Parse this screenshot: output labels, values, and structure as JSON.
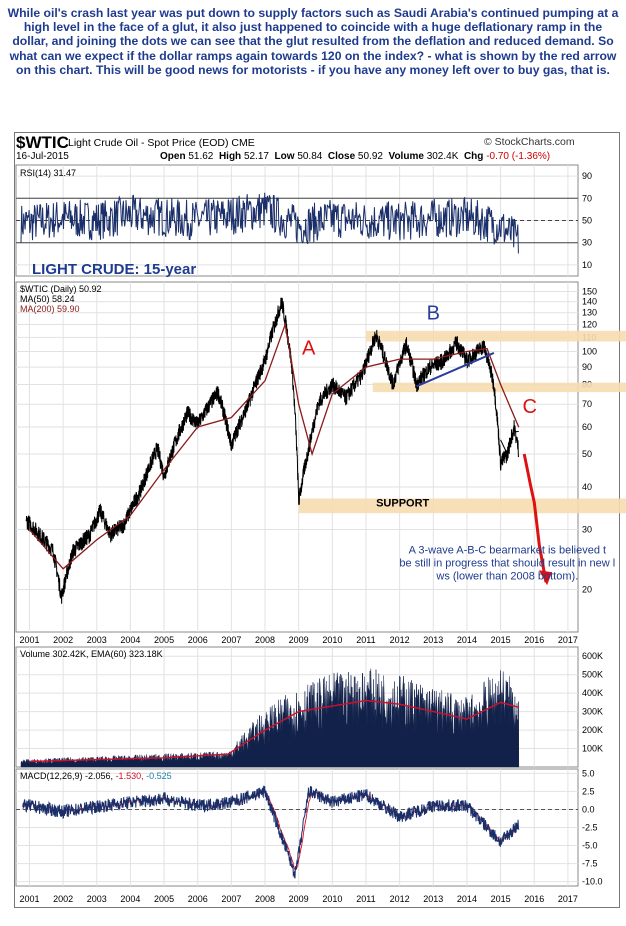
{
  "commentary": "While oil's crash last year was put down to supply factors such as Saudi Arabia's continued pumping at a high level in the face of a glut, it also just happened to coincide with a huge deflationary ramp in the dollar, and joining the dots we can see that the glut resulted from the deflation and reduced demand. So what can we expect if the dollar ramps again towards 120 on the index? - what is shown by the red arrow on this chart. This will be good news for motorists - if you have any money left over to buy gas, that is.",
  "header": {
    "symbol": "$WTIC",
    "name": "Light Crude Oil - Spot Price (EOD)",
    "exchange": "CME",
    "watermark": "© StockCharts.com",
    "date": "16-Jul-2015",
    "open_label": "Open",
    "open": "51.62",
    "high_label": "High",
    "high": "52.17",
    "low_label": "Low",
    "low": "50.84",
    "close_label": "Close",
    "close": "50.92",
    "volume_label": "Volume",
    "volume": "302.4K",
    "chg_label": "Chg",
    "chg": "-0.70 (-1.36%)"
  },
  "colors": {
    "price": "#000000",
    "ma200": "#8b1a1a",
    "indicator": "#1a2f6a",
    "annotation_red": "#dd1111",
    "annotation_blue": "#2a3d9c",
    "band": "#f6dcb0"
  },
  "chart_data": [
    {
      "type": "line",
      "panel": "RSI",
      "legend": "RSI(14) 31.47",
      "y_ticks": [
        10,
        30,
        50,
        70,
        90
      ],
      "guides": [
        30,
        70
      ],
      "ylim": [
        0,
        100
      ],
      "x": [
        2001,
        2002,
        2003,
        2004,
        2005,
        2006,
        2007,
        2008,
        2009,
        2010,
        2011,
        2012,
        2013,
        2014,
        2015,
        2015.54
      ],
      "values": [
        48,
        52,
        50,
        55,
        53,
        50,
        55,
        60,
        45,
        52,
        50,
        49,
        52,
        53,
        45,
        31.47
      ]
    },
    {
      "type": "line",
      "panel": "Price",
      "title": "LIGHT CRUDE: 15-year",
      "legend": [
        "$WTIC (Daily) 50.92",
        "MA(50) 58.24",
        "MA(200) 59.90"
      ],
      "scale": "log",
      "ylim": [
        15,
        160
      ],
      "y_ticks": [
        20,
        30,
        40,
        50,
        60,
        70,
        80,
        90,
        100,
        110,
        120,
        130,
        140,
        150
      ],
      "x_ticks": [
        "2001",
        "2002",
        "2003",
        "2004",
        "2005",
        "2006",
        "2007",
        "2008",
        "2009",
        "2010",
        "2011",
        "2012",
        "2013",
        "2014",
        "2015",
        "2016",
        "2017"
      ],
      "series": [
        {
          "name": "$WTIC (Daily)",
          "x": [
            2000.9,
            2001.3,
            2001.7,
            2001.95,
            2002.3,
            2002.8,
            2003.1,
            2003.4,
            2003.8,
            2004.3,
            2004.8,
            2005.0,
            2005.7,
            2006.0,
            2006.6,
            2007.0,
            2007.5,
            2008.0,
            2008.5,
            2008.8,
            2009.0,
            2009.3,
            2009.6,
            2010.0,
            2010.4,
            2010.9,
            2011.3,
            2011.8,
            2012.2,
            2012.5,
            2012.9,
            2013.3,
            2013.7,
            2014.0,
            2014.5,
            2014.8,
            2015.0,
            2015.2,
            2015.4,
            2015.54
          ],
          "values": [
            32,
            29,
            26,
            19,
            26,
            29,
            34,
            29,
            31,
            39,
            52,
            43,
            66,
            61,
            76,
            53,
            70,
            94,
            140,
            90,
            36,
            52,
            71,
            80,
            73,
            86,
            112,
            80,
            105,
            80,
            90,
            94,
            106,
            94,
            104,
            80,
            47,
            50,
            60,
            50.92
          ]
        },
        {
          "name": "MA(200)",
          "x": [
            2001,
            2002,
            2003,
            2004,
            2005,
            2006,
            2007,
            2008,
            2008.6,
            2009.0,
            2009.4,
            2010,
            2011,
            2012,
            2013,
            2014,
            2014.6,
            2015,
            2015.54
          ],
          "values": [
            30,
            23,
            28,
            33,
            45,
            60,
            64,
            82,
            120,
            70,
            50,
            75,
            90,
            95,
            95,
            100,
            102,
            80,
            59.9
          ]
        },
        {
          "name": "MA(50)",
          "x": [
            2015.0,
            2015.2,
            2015.4,
            2015.54
          ],
          "values": [
            55,
            50,
            58,
            58.24
          ]
        }
      ],
      "annotations": [
        "A",
        "B",
        "C",
        "SUPPORT",
        "A 3-wave A-B-C bearmarket is believed to be still in progress that should result in new lows (lower than 2008 bottom)."
      ]
    },
    {
      "type": "bar",
      "panel": "Volume",
      "legend": "Volume 302.42K, EMA(60) 323.18K",
      "y_ticks": [
        "100K",
        "200K",
        "300K",
        "400K",
        "500K",
        "600K"
      ],
      "x": [
        2001,
        2003,
        2005,
        2006.9,
        2008,
        2009,
        2010,
        2011,
        2012,
        2013,
        2014,
        2015,
        2015.54
      ],
      "values": [
        30,
        40,
        50,
        60,
        220,
        300,
        350,
        370,
        350,
        300,
        260,
        380,
        302.42
      ],
      "ema": [
        30,
        40,
        50,
        70,
        200,
        300,
        330,
        360,
        340,
        300,
        260,
        350,
        323.18
      ]
    },
    {
      "type": "line",
      "panel": "MACD",
      "legend": [
        "MACD(12,26,9)",
        "-2.056",
        "-1.530",
        "-0.525"
      ],
      "y_ticks": [
        "-10.0",
        "-7.5",
        "-5.0",
        "-2.5",
        "0.0",
        "2.5",
        "5.0"
      ],
      "x": [
        2001,
        2002,
        2003,
        2004,
        2005,
        2006,
        2007,
        2008,
        2008.9,
        2009.3,
        2010,
        2011,
        2012,
        2013,
        2014,
        2015,
        2015.54
      ],
      "values": [
        0.5,
        -0.3,
        0.4,
        1.0,
        1.5,
        0.5,
        1.0,
        2.5,
        -9,
        2.5,
        1.0,
        2.0,
        -1.0,
        0.5,
        0.5,
        -4.5,
        -2.056
      ]
    }
  ]
}
